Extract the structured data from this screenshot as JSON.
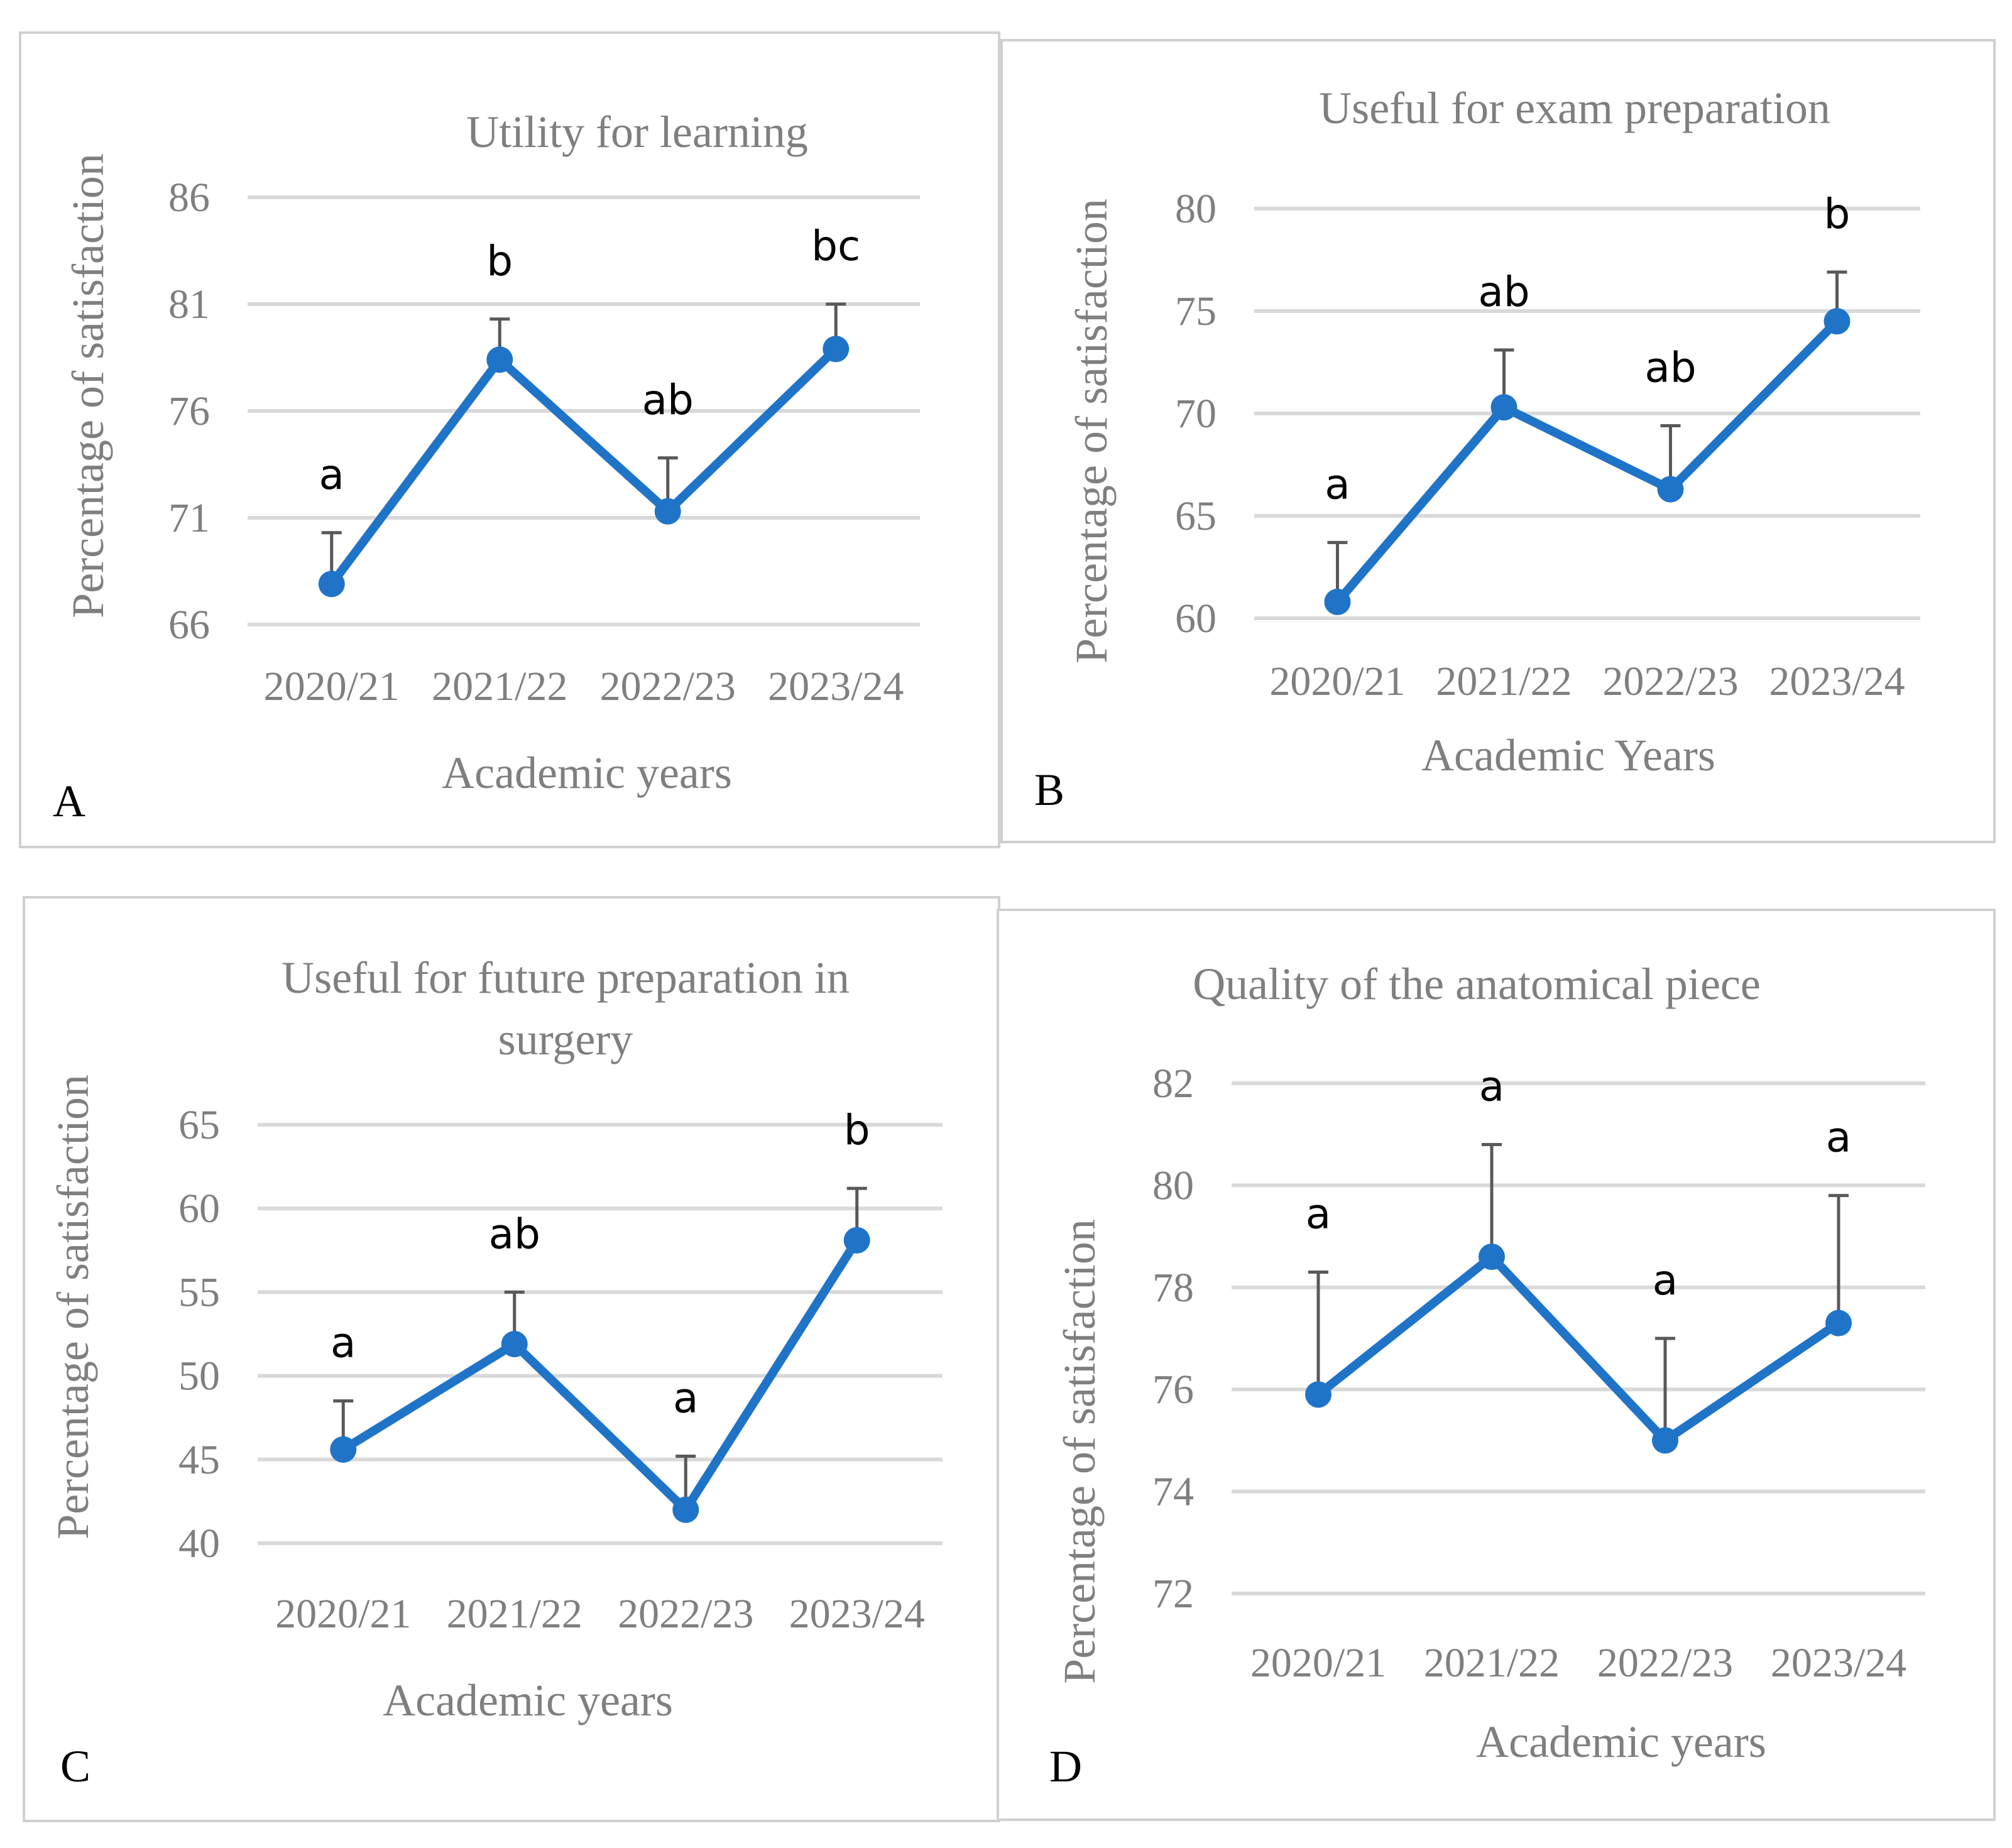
{
  "chart_data": [
    {
      "panel": "A",
      "type": "line",
      "title": "Utility for learning",
      "title_lines": [
        "Utility for learning"
      ],
      "xlabel": "Academic years",
      "ylabel": "Percentage of satisfaction",
      "categories": [
        "2020/21",
        "2021/22",
        "2022/23",
        "2023/24"
      ],
      "values": [
        67.9,
        78.4,
        71.3,
        78.9
      ],
      "errors": [
        2.4,
        1.9,
        2.5,
        2.1
      ],
      "significance": [
        "a",
        "b",
        "ab",
        "bc"
      ],
      "yticks": [
        66,
        71,
        76,
        81,
        86
      ],
      "ylim": [
        66,
        86
      ],
      "grid": true
    },
    {
      "panel": "B",
      "type": "line",
      "title": "Useful for exam preparation",
      "title_lines": [
        "Useful for exam preparation"
      ],
      "xlabel": "Academic Years",
      "ylabel": "Percentage of satisfaction",
      "categories": [
        "2020/21",
        "2021/22",
        "2022/23",
        "2023/24"
      ],
      "values": [
        60.8,
        70.3,
        66.3,
        74.5
      ],
      "errors": [
        2.9,
        2.8,
        3.1,
        2.4
      ],
      "significance": [
        "a",
        "ab",
        "ab",
        "b"
      ],
      "yticks": [
        60,
        65,
        70,
        75,
        80
      ],
      "ylim": [
        60,
        80
      ],
      "grid": true
    },
    {
      "panel": "C",
      "type": "line",
      "title": "Useful for future preparation in surgery",
      "title_lines": [
        "Useful for future preparation in",
        "surgery"
      ],
      "xlabel": "Academic years",
      "ylabel": "Percentage of satisfaction",
      "categories": [
        "2020/21",
        "2021/22",
        "2022/23",
        "2023/24"
      ],
      "values": [
        45.6,
        51.9,
        42.0,
        58.1
      ],
      "errors": [
        2.9,
        3.1,
        3.2,
        3.1
      ],
      "significance": [
        "a",
        "ab",
        "a",
        "b"
      ],
      "yticks": [
        40,
        45,
        50,
        55,
        60,
        65
      ],
      "ylim": [
        40,
        65
      ],
      "grid": true
    },
    {
      "panel": "D",
      "type": "line",
      "title": "Quality of the anatomical piece",
      "title_lines": [
        "Quality of the anatomical piece"
      ],
      "xlabel": "Academic years",
      "ylabel": "Percentage of satisfaction",
      "categories": [
        "2020/21",
        "2021/22",
        "2022/23",
        "2023/24"
      ],
      "values": [
        75.9,
        78.6,
        75.0,
        77.3
      ],
      "errors": [
        2.4,
        2.2,
        2.0,
        2.5
      ],
      "significance": [
        "a",
        "a",
        "a",
        "a"
      ],
      "yticks": [
        72,
        74,
        76,
        78,
        80,
        82
      ],
      "ylim": [
        72,
        82
      ],
      "grid": true
    }
  ],
  "panel_letters": [
    "A",
    "B",
    "C",
    "D"
  ],
  "colors": {
    "series": "#1f74c8",
    "grid": "#d9d9d9",
    "text": "#7f7f7f",
    "error_bar": "#595959"
  }
}
